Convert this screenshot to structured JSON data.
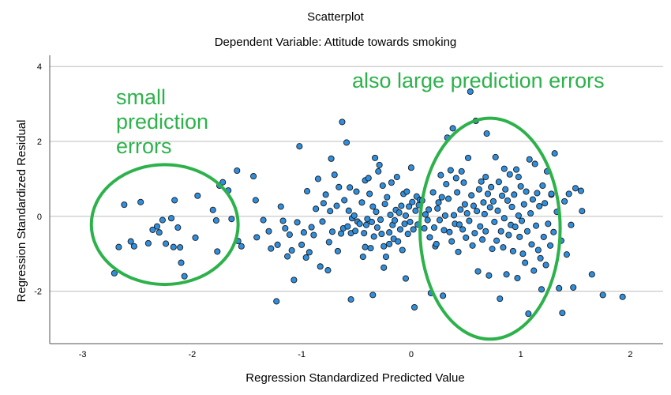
{
  "chart_data": {
    "type": "scatter",
    "title": "Scatterplot",
    "subtitle": "Dependent Variable: Attitude towards smoking",
    "xlabel": "Regression Standardized Predicted Value",
    "ylabel": "Regression Standardized Residual",
    "xlim": [
      -3.3,
      2.3
    ],
    "ylim": [
      -3.4,
      4.3
    ],
    "xticks": [
      -3,
      -2,
      -1,
      0,
      1,
      2
    ],
    "yticks": [
      -2,
      0,
      2,
      4
    ],
    "grid": "horizontal",
    "point_color": "#2f8fdf",
    "point_edge_color": "#1a1a1a",
    "annotation_color": "#2db24b",
    "annotations": [
      {
        "lines": [
          "small",
          "prediction",
          "errors"
        ],
        "ellipse": {
          "cx": -2.25,
          "cy": -0.22,
          "rx": 0.67,
          "ry": 1.6
        }
      },
      {
        "lines": [
          "also large prediction errors"
        ],
        "ellipse": {
          "cx": 0.72,
          "cy": -0.33,
          "rx": 0.64,
          "ry": 2.95
        }
      }
    ],
    "points": [
      [
        -2.71,
        -1.52
      ],
      [
        -2.67,
        -0.82
      ],
      [
        -2.62,
        0.31
      ],
      [
        -2.56,
        -0.67
      ],
      [
        -2.53,
        -0.8
      ],
      [
        -2.47,
        0.38
      ],
      [
        -2.4,
        -0.72
      ],
      [
        -2.36,
        -0.36
      ],
      [
        -2.32,
        -0.27
      ],
      [
        -2.3,
        -0.43
      ],
      [
        -2.27,
        -0.1
      ],
      [
        -2.24,
        -0.73
      ],
      [
        -2.19,
        -0.05
      ],
      [
        -2.17,
        -0.82
      ],
      [
        -2.16,
        0.43
      ],
      [
        -2.13,
        -0.3
      ],
      [
        -2.11,
        -0.83
      ],
      [
        -2.1,
        -1.24
      ],
      [
        -2.07,
        -1.6
      ],
      [
        -1.97,
        -0.57
      ],
      [
        -1.95,
        0.55
      ],
      [
        -1.81,
        0.17
      ],
      [
        -1.78,
        -0.11
      ],
      [
        -1.77,
        -0.94
      ],
      [
        -1.75,
        0.82
      ],
      [
        -1.72,
        0.91
      ],
      [
        -1.67,
        0.69
      ],
      [
        -1.64,
        -0.07
      ],
      [
        -1.59,
        1.22
      ],
      [
        -1.55,
        -0.8
      ],
      [
        -1.58,
        -0.66
      ],
      [
        -1.44,
        1.07
      ],
      [
        -1.42,
        0.43
      ],
      [
        -1.41,
        -0.56
      ],
      [
        -1.35,
        -0.1
      ],
      [
        -1.3,
        -0.4
      ],
      [
        -1.28,
        -0.86
      ],
      [
        -1.23,
        -2.27
      ],
      [
        -1.22,
        -0.76
      ],
      [
        -1.19,
        0.26
      ],
      [
        -1.17,
        -0.12
      ],
      [
        -1.15,
        -0.32
      ],
      [
        -1.13,
        -1.07
      ],
      [
        -1.11,
        -0.49
      ],
      [
        -1.09,
        -0.91
      ],
      [
        -1.07,
        -1.7
      ],
      [
        -1.04,
        -0.16
      ],
      [
        -1.02,
        1.87
      ],
      [
        -1.0,
        -0.76
      ],
      [
        -0.98,
        -0.43
      ],
      [
        -0.96,
        -1.1
      ],
      [
        -0.95,
        0.67
      ],
      [
        -0.93,
        -0.96
      ],
      [
        -0.91,
        -0.29
      ],
      [
        -0.89,
        -0.5
      ],
      [
        -0.87,
        0.2
      ],
      [
        -0.85,
        1.0
      ],
      [
        -0.83,
        -1.34
      ],
      [
        -0.81,
        -0.14
      ],
      [
        -0.8,
        0.35
      ],
      [
        -0.78,
        0.58
      ],
      [
        -0.76,
        -1.44
      ],
      [
        -0.75,
        -0.69
      ],
      [
        -0.74,
        0.14
      ],
      [
        -0.73,
        1.54
      ],
      [
        -0.72,
        -0.41
      ],
      [
        -0.7,
        1.11
      ],
      [
        -0.68,
        0.28
      ],
      [
        -0.67,
        -0.93
      ],
      [
        -0.66,
        0.78
      ],
      [
        -0.64,
        -0.46
      ],
      [
        -0.63,
        2.52
      ],
      [
        -0.62,
        -0.32
      ],
      [
        -0.61,
        0.43
      ],
      [
        -0.59,
        1.97
      ],
      [
        -0.58,
        -0.27
      ],
      [
        -0.57,
        0.15
      ],
      [
        -0.56,
        0.77
      ],
      [
        -0.55,
        -0.45
      ],
      [
        -0.54,
        -0.05
      ],
      [
        -0.52,
        0.02
      ],
      [
        -0.51,
        -0.39
      ],
      [
        -0.5,
        0.66
      ],
      [
        -0.49,
        -0.14
      ],
      [
        -0.47,
        -0.2
      ],
      [
        -0.45,
        0.37
      ],
      [
        -0.44,
        -1.08
      ],
      [
        -0.43,
        -0.45
      ],
      [
        -0.42,
        0.96
      ],
      [
        -0.41,
        -0.23
      ],
      [
        -0.4,
        -0.07
      ],
      [
        -0.39,
        1.02
      ],
      [
        -0.38,
        0.6
      ],
      [
        -0.37,
        -0.85
      ],
      [
        -0.36,
        -0.15
      ],
      [
        -0.35,
        0.26
      ],
      [
        -0.34,
        -0.54
      ],
      [
        -0.33,
        1.56
      ],
      [
        -0.32,
        0.12
      ],
      [
        -0.31,
        -0.3
      ],
      [
        -0.3,
        1.2
      ],
      [
        -0.29,
        1.37
      ],
      [
        -0.28,
        -0.09
      ],
      [
        -0.27,
        -0.47
      ],
      [
        -0.26,
        0.82
      ],
      [
        -0.25,
        -0.8
      ],
      [
        -0.24,
        0.33
      ],
      [
        -0.23,
        -1.08
      ],
      [
        -0.22,
        0.51
      ],
      [
        -0.2,
        -0.43
      ],
      [
        -0.19,
        0.04
      ],
      [
        -0.18,
        0.9
      ],
      [
        -0.17,
        -0.23
      ],
      [
        -0.16,
        -0.6
      ],
      [
        -0.15,
        -0.11
      ],
      [
        -0.14,
        0.17
      ],
      [
        -0.13,
        1.05
      ],
      [
        -0.12,
        -0.67
      ],
      [
        -0.11,
        0.1
      ],
      [
        -0.1,
        -0.35
      ],
      [
        -0.09,
        0.28
      ],
      [
        -0.08,
        -0.9
      ],
      [
        -0.07,
        0.6
      ],
      [
        -0.06,
        -0.2
      ],
      [
        -0.05,
        0.02
      ],
      [
        -0.04,
        0.66
      ],
      [
        -0.03,
        -0.47
      ],
      [
        -0.02,
        0.26
      ],
      [
        -0.01,
        -0.15
      ],
      [
        0.0,
        1.3
      ],
      [
        0.01,
        0.38
      ],
      [
        0.02,
        -0.35
      ],
      [
        0.03,
        -2.43
      ],
      [
        0.04,
        0.15
      ],
      [
        0.05,
        0.53
      ],
      [
        0.06,
        -0.22
      ],
      [
        0.07,
        0.3
      ],
      [
        0.08,
        0.44
      ],
      [
        -0.55,
        -2.22
      ],
      [
        -0.35,
        -2.1
      ],
      [
        -0.05,
        -1.66
      ],
      [
        -0.25,
        -1.37
      ],
      [
        -0.42,
        -0.82
      ],
      [
        -0.2,
        -0.74
      ],
      [
        0.1,
        0.42
      ],
      [
        0.12,
        -0.32
      ],
      [
        0.13,
        0.05
      ],
      [
        0.15,
        -0.1
      ],
      [
        0.16,
        0.18
      ],
      [
        0.17,
        -0.56
      ],
      [
        0.18,
        -2.05
      ],
      [
        0.2,
        0.64
      ],
      [
        0.21,
        -0.3
      ],
      [
        0.22,
        -0.8
      ],
      [
        0.23,
        -0.74
      ],
      [
        0.24,
        0.21
      ],
      [
        0.25,
        0.37
      ],
      [
        0.26,
        -0.1
      ],
      [
        0.27,
        1.1
      ],
      [
        0.28,
        0.51
      ],
      [
        0.29,
        -2.12
      ],
      [
        0.3,
        -0.37
      ],
      [
        0.31,
        0.02
      ],
      [
        0.32,
        0.86
      ],
      [
        0.33,
        2.1
      ],
      [
        0.34,
        0.47
      ],
      [
        0.35,
        -0.42
      ],
      [
        0.36,
        1.23
      ],
      [
        0.37,
        -0.67
      ],
      [
        0.38,
        2.35
      ],
      [
        0.39,
        0.03
      ],
      [
        0.4,
        -0.2
      ],
      [
        0.41,
        1.02
      ],
      [
        0.42,
        0.64
      ],
      [
        0.43,
        -0.95
      ],
      [
        0.44,
        -0.22
      ],
      [
        0.45,
        0.18
      ],
      [
        0.46,
        1.2
      ],
      [
        0.47,
        -0.35
      ],
      [
        0.48,
        0.9
      ],
      [
        0.49,
        0.32
      ],
      [
        0.5,
        -0.57
      ],
      [
        0.51,
        0.08
      ],
      [
        0.52,
        1.56
      ],
      [
        0.53,
        -0.12
      ],
      [
        0.54,
        3.33
      ],
      [
        0.55,
        0.56
      ],
      [
        0.56,
        -0.78
      ],
      [
        0.57,
        0.28
      ],
      [
        0.58,
        -0.45
      ],
      [
        0.59,
        2.55
      ],
      [
        0.6,
        0.14
      ],
      [
        0.61,
        -1.47
      ],
      [
        0.62,
        0.72
      ],
      [
        0.63,
        -0.27
      ],
      [
        0.64,
        0.93
      ],
      [
        0.65,
        -0.62
      ],
      [
        0.66,
        0.37
      ],
      [
        0.67,
        0.06
      ],
      [
        0.68,
        -0.4
      ],
      [
        0.69,
        2.21
      ],
      [
        0.7,
        0.6
      ],
      [
        0.71,
        -1.58
      ],
      [
        0.72,
        0.24
      ],
      [
        0.73,
        0.78
      ],
      [
        0.74,
        -0.87
      ],
      [
        0.75,
        0.4
      ],
      [
        0.76,
        -0.15
      ],
      [
        0.77,
        1.58
      ],
      [
        0.78,
        -0.65
      ],
      [
        0.79,
        0.15
      ],
      [
        0.8,
        0.92
      ],
      [
        0.81,
        -2.2
      ],
      [
        0.82,
        -0.4
      ],
      [
        0.83,
        0.55
      ],
      [
        0.84,
        -0.83
      ],
      [
        0.85,
        -0.05
      ],
      [
        0.86,
        0.72
      ],
      [
        0.87,
        -1.55
      ],
      [
        0.88,
        0.42
      ],
      [
        0.89,
        -0.5
      ],
      [
        0.9,
        1.12
      ],
      [
        0.91,
        -0.23
      ],
      [
        0.92,
        0.25
      ],
      [
        0.93,
        -0.93
      ],
      [
        0.94,
        0.58
      ],
      [
        0.95,
        -0.28
      ],
      [
        0.96,
        1.25
      ],
      [
        0.97,
        -1.65
      ],
      [
        0.98,
        0.02
      ],
      [
        0.99,
        -0.55
      ],
      [
        1.0,
        0.8
      ],
      [
        1.01,
        -0.12
      ],
      [
        1.02,
        -1.0
      ],
      [
        1.03,
        0.32
      ],
      [
        1.04,
        -1.24
      ],
      [
        1.05,
        0.66
      ],
      [
        1.06,
        -0.4
      ],
      [
        1.07,
        -2.6
      ],
      [
        1.08,
        1.52
      ],
      [
        1.09,
        0.08
      ],
      [
        1.1,
        -0.75
      ],
      [
        1.11,
        0.45
      ],
      [
        1.12,
        -1.45
      ],
      [
        1.13,
        1.4
      ],
      [
        1.14,
        -0.25
      ],
      [
        1.15,
        0.62
      ],
      [
        1.16,
        -0.9
      ],
      [
        1.17,
        0.27
      ],
      [
        1.18,
        -1.12
      ],
      [
        1.19,
        -1.95
      ],
      [
        1.2,
        0.82
      ],
      [
        1.21,
        -0.55
      ],
      [
        1.22,
        0.35
      ],
      [
        1.23,
        -1.3
      ],
      [
        1.24,
        1.2
      ],
      [
        1.25,
        -0.2
      ],
      [
        1.27,
        -0.78
      ],
      [
        1.28,
        0.58
      ],
      [
        1.3,
        -0.42
      ],
      [
        1.31,
        1.68
      ],
      [
        1.33,
        0.12
      ],
      [
        1.35,
        -1.92
      ],
      [
        1.37,
        -0.65
      ],
      [
        1.38,
        -2.58
      ],
      [
        1.4,
        0.4
      ],
      [
        1.42,
        -1.02
      ],
      [
        1.44,
        0.6
      ],
      [
        1.46,
        -0.23
      ],
      [
        1.48,
        -1.9
      ],
      [
        1.5,
        0.75
      ],
      [
        1.55,
        0.68
      ],
      [
        1.56,
        0.14
      ],
      [
        1.65,
        -1.55
      ],
      [
        1.75,
        -2.1
      ],
      [
        1.93,
        -2.15
      ],
      [
        1.28,
        0.6
      ],
      [
        0.98,
        1.05
      ],
      [
        0.85,
        1.27
      ],
      [
        0.68,
        1.05
      ]
    ]
  }
}
